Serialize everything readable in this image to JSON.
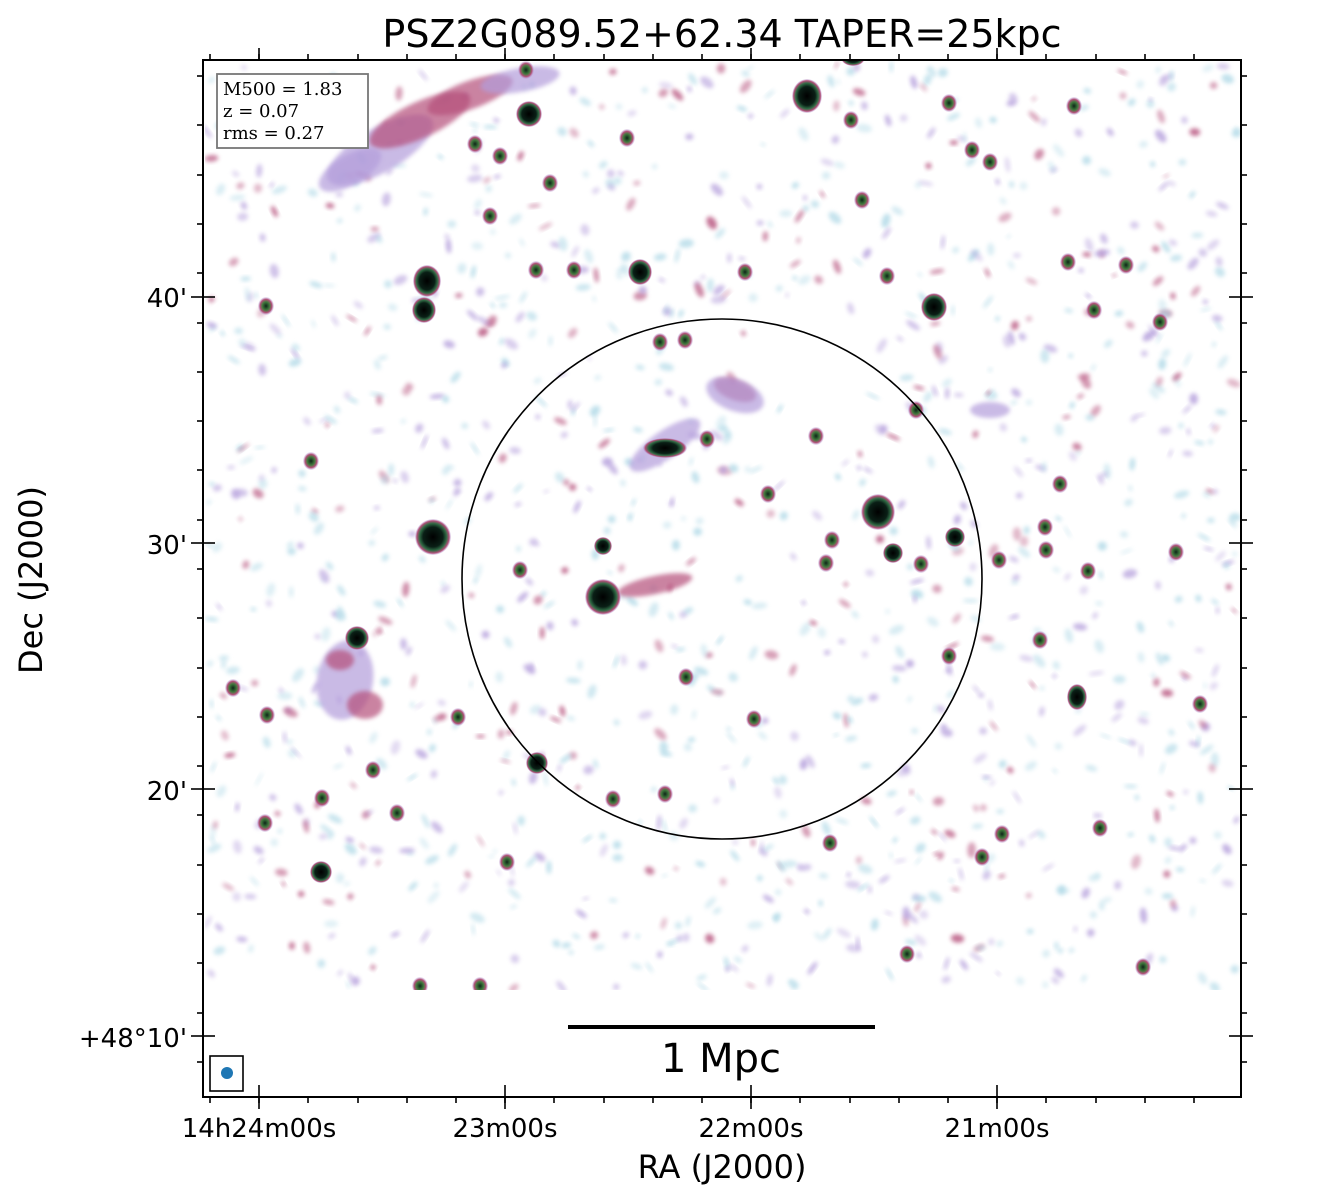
{
  "figure": {
    "title": "PSZ2G089.52+62.34 TAPER=25kpc",
    "xlabel": "RA (J2000)",
    "ylabel": "Dec (J2000)",
    "x_ticks": [
      "14h24m00s",
      "23m00s",
      "22m00s",
      "21m00s"
    ],
    "y_ticks": [
      "40'",
      "30'",
      "20'",
      "+48°10'"
    ],
    "info_box": [
      "M500 = 1.83",
      "z = 0.07",
      "rms = 0.27"
    ],
    "scale_bar_label": "1 Mpc",
    "colors": {
      "frame": "#000000",
      "beam": "#1f77b4",
      "emission_low": "#aed8e6",
      "emission_mid": "#b39ddb",
      "emission_high": "#b5507a",
      "core": "#1a5a3a"
    }
  }
}
